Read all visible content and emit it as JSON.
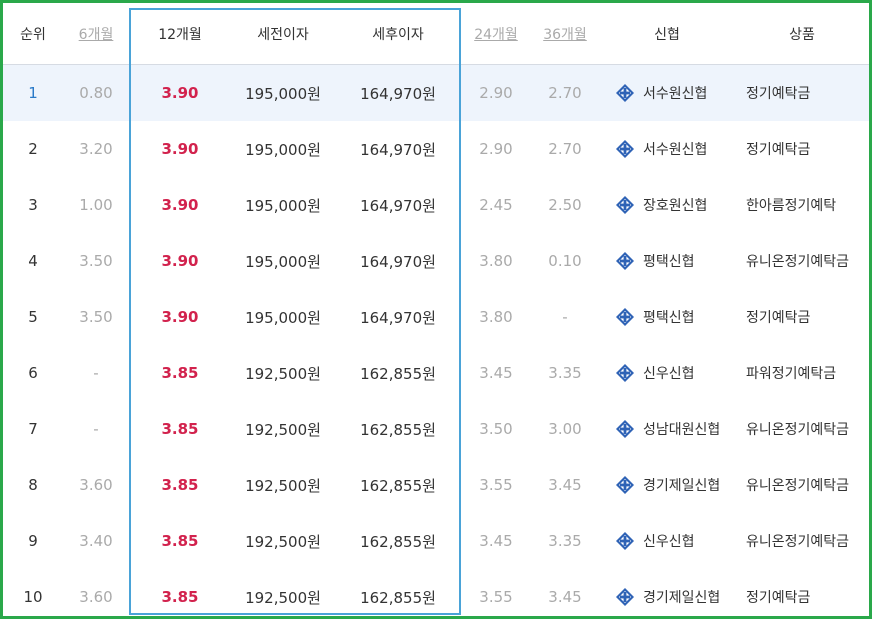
{
  "headers": {
    "rank": "순위",
    "m6": "6개월",
    "m12": "12개월",
    "pre_tax": "세전이자",
    "post_tax": "세후이자",
    "m24": "24개월",
    "m36": "36개월",
    "bank": "신협",
    "product": "상품"
  },
  "rows": [
    {
      "rank": "1",
      "m6": "0.80",
      "m12": "3.90",
      "pre": "195,000원",
      "post": "164,970원",
      "m24": "2.90",
      "m36": "2.70",
      "bank": "서수원신협",
      "product": "정기예탁금"
    },
    {
      "rank": "2",
      "m6": "3.20",
      "m12": "3.90",
      "pre": "195,000원",
      "post": "164,970원",
      "m24": "2.90",
      "m36": "2.70",
      "bank": "서수원신협",
      "product": "정기예탁금"
    },
    {
      "rank": "3",
      "m6": "1.00",
      "m12": "3.90",
      "pre": "195,000원",
      "post": "164,970원",
      "m24": "2.45",
      "m36": "2.50",
      "bank": "장호원신협",
      "product": "한아름정기예탁"
    },
    {
      "rank": "4",
      "m6": "3.50",
      "m12": "3.90",
      "pre": "195,000원",
      "post": "164,970원",
      "m24": "3.80",
      "m36": "0.10",
      "bank": "평택신협",
      "product": "유니온정기예탁금"
    },
    {
      "rank": "5",
      "m6": "3.50",
      "m12": "3.90",
      "pre": "195,000원",
      "post": "164,970원",
      "m24": "3.80",
      "m36": "-",
      "bank": "평택신협",
      "product": "정기예탁금"
    },
    {
      "rank": "6",
      "m6": "-",
      "m12": "3.85",
      "pre": "192,500원",
      "post": "162,855원",
      "m24": "3.45",
      "m36": "3.35",
      "bank": "신우신협",
      "product": "파워정기예탁금"
    },
    {
      "rank": "7",
      "m6": "-",
      "m12": "3.85",
      "pre": "192,500원",
      "post": "162,855원",
      "m24": "3.50",
      "m36": "3.00",
      "bank": "성남대원신협",
      "product": "유니온정기예탁금"
    },
    {
      "rank": "8",
      "m6": "3.60",
      "m12": "3.85",
      "pre": "192,500원",
      "post": "162,855원",
      "m24": "3.55",
      "m36": "3.45",
      "bank": "경기제일신협",
      "product": "유니온정기예탁금"
    },
    {
      "rank": "9",
      "m6": "3.40",
      "m12": "3.85",
      "pre": "192,500원",
      "post": "162,855원",
      "m24": "3.45",
      "m36": "3.35",
      "bank": "신우신협",
      "product": "유니온정기예탁금"
    },
    {
      "rank": "10",
      "m6": "3.60",
      "m12": "3.85",
      "pre": "192,500원",
      "post": "162,855원",
      "m24": "3.55",
      "m36": "3.45",
      "bank": "경기제일신협",
      "product": "정기예탁금"
    }
  ],
  "highlighted_row": 0,
  "icons": {
    "bank": "cu-logo-icon"
  },
  "colors": {
    "frame": "#2aa84a",
    "highlight_box": "#4aa3d8",
    "rate12": "#d2224d",
    "row_highlight": "#eef4fc",
    "logo": "#2f63b6"
  }
}
